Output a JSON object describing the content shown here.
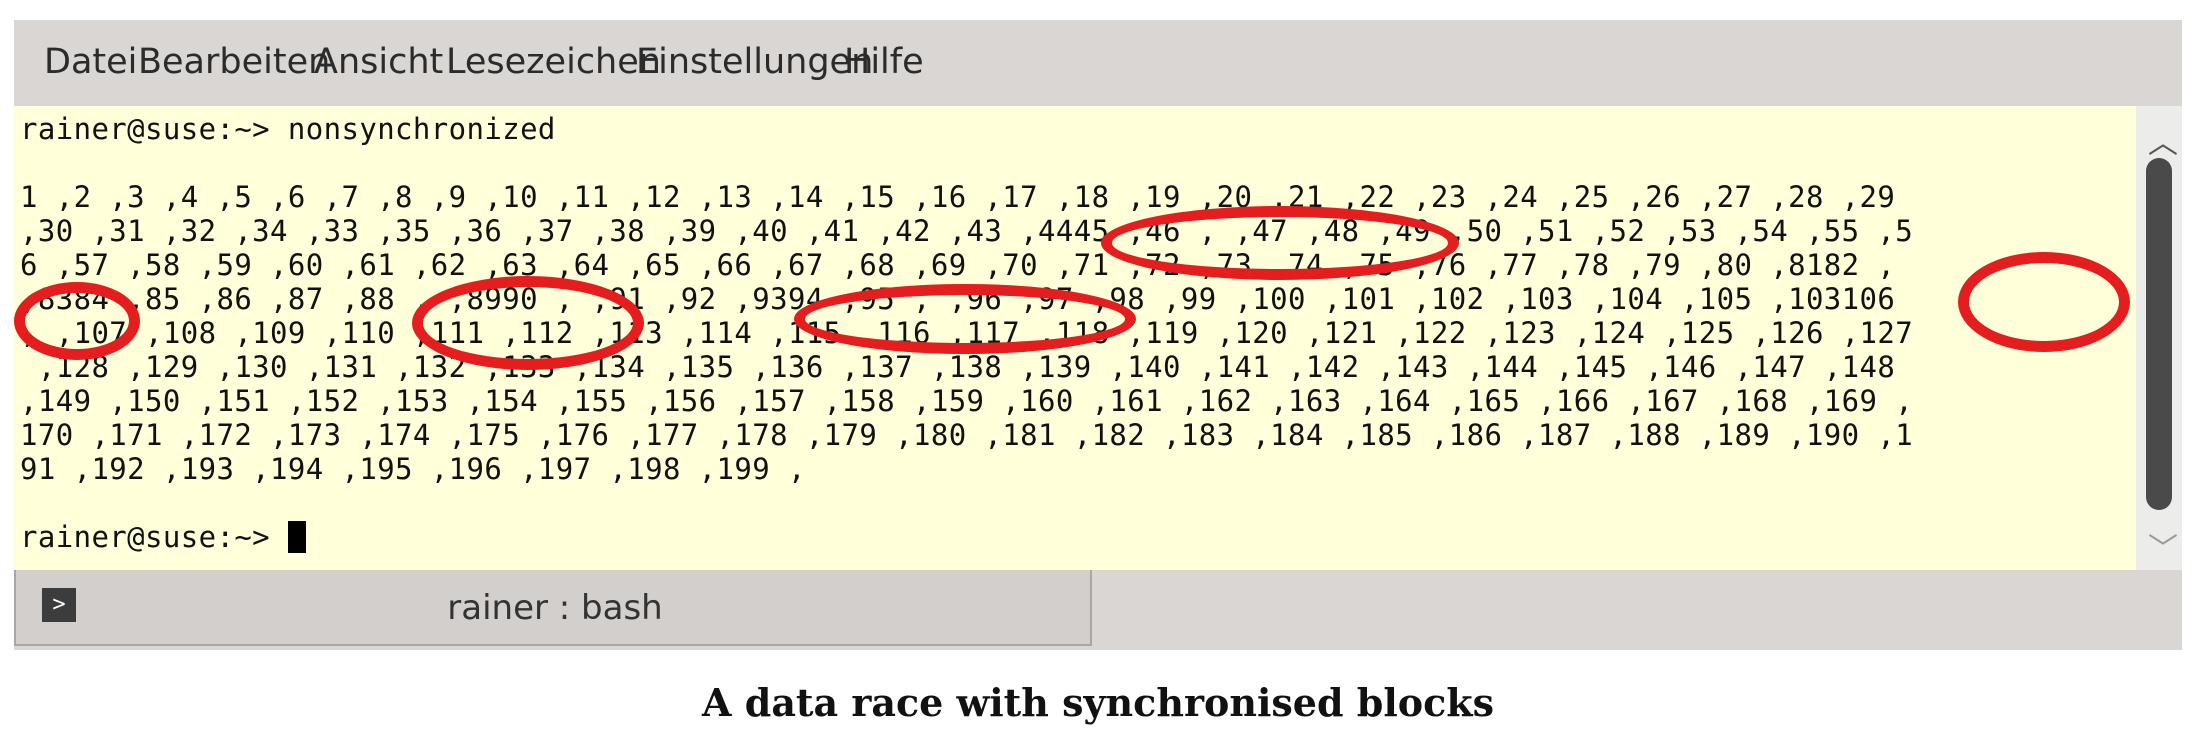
{
  "menu": {
    "items": [
      "Datei",
      "Bearbeiten",
      "Ansicht",
      "Lesezeichen",
      "Einstellungen",
      "Hilfe"
    ]
  },
  "terminal": {
    "lines": [
      "rainer@suse:~> nonsynchronized",
      "",
      "1 ,2 ,3 ,4 ,5 ,6 ,7 ,8 ,9 ,10 ,11 ,12 ,13 ,14 ,15 ,16 ,17 ,18 ,19 ,20 ,21 ,22 ,23 ,24 ,25 ,26 ,27 ,28 ,29",
      ",30 ,31 ,32 ,34 ,33 ,35 ,36 ,37 ,38 ,39 ,40 ,41 ,42 ,43 ,4445 ,46 , ,47 ,48 ,49 ,50 ,51 ,52 ,53 ,54 ,55 ,5",
      "6 ,57 ,58 ,59 ,60 ,61 ,62 ,63 ,64 ,65 ,66 ,67 ,68 ,69 ,70 ,71 ,72 ,73 ,74 ,75 ,76 ,77 ,78 ,79 ,80 ,8182 ,",
      ",8384 ,85 ,86 ,87 ,88 , ,8990 , ,91 ,92 ,9394 ,95 , ,96 ,97 ,98 ,99 ,100 ,101 ,102 ,103 ,104 ,105 ,103106",
      ", ,107 ,108 ,109 ,110 ,111 ,112 ,113 ,114 ,115 ,116 ,117 ,118 ,119 ,120 ,121 ,122 ,123 ,124 ,125 ,126 ,127",
      " ,128 ,129 ,130 ,131 ,132 ,133 ,134 ,135 ,136 ,137 ,138 ,139 ,140 ,141 ,142 ,143 ,144 ,145 ,146 ,147 ,148",
      ",149 ,150 ,151 ,152 ,153 ,154 ,155 ,156 ,157 ,158 ,159 ,160 ,161 ,162 ,163 ,164 ,165 ,166 ,167 ,168 ,169 ,",
      "170 ,171 ,172 ,173 ,174 ,175 ,176 ,177 ,178 ,179 ,180 ,181 ,182 ,183 ,184 ,185 ,186 ,187 ,188 ,189 ,190 ,1",
      "91 ,192 ,193 ,194 ,195 ,196 ,197 ,198 ,199 ,",
      ""
    ],
    "prompt": "rainer@suse:~> "
  },
  "tab": {
    "label": "rainer : bash",
    "icon": "terminal-icon"
  },
  "scrollbar": {
    "up_glyph": "︿",
    "down_glyph": "﹀"
  },
  "caption": "A data race with synchronised blocks",
  "colors": {
    "terminal_bg": "#ffffd9",
    "annotation": "#e41e1e",
    "chrome": "#d9d6d3"
  }
}
